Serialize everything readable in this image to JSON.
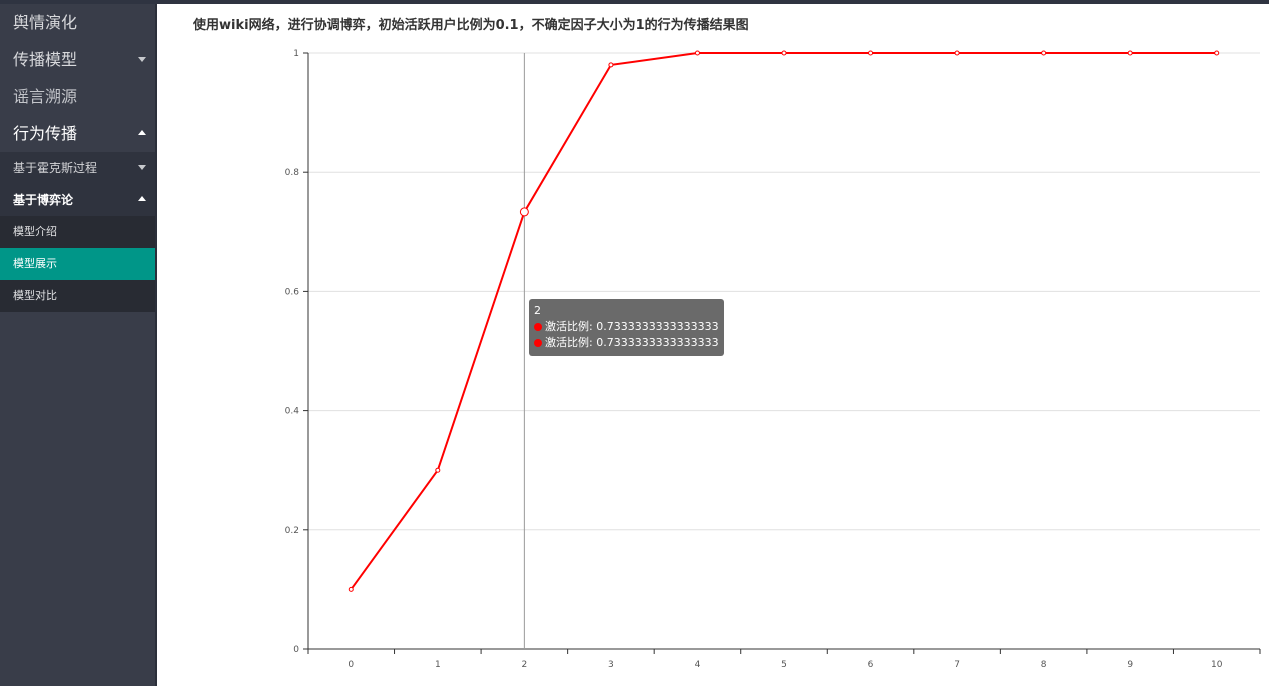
{
  "sidebar": {
    "items": [
      {
        "label": "舆情演化"
      },
      {
        "label": "传播模型"
      },
      {
        "label": "谣言溯源"
      },
      {
        "label": "行为传播"
      }
    ],
    "sub_items": [
      {
        "label": "基于霍克斯过程"
      },
      {
        "label": "基于博弈论"
      }
    ],
    "leaves": [
      {
        "label": "模型介绍"
      },
      {
        "label": "模型展示"
      },
      {
        "label": "模型对比"
      }
    ]
  },
  "main": {
    "title": "使用wiki网络，进行协调博弈，初始活跃用户比例为0.1，不确定因子大小为1的行为传播结果图"
  },
  "tooltip": {
    "x_label": "2",
    "rows": [
      {
        "text": "激活比例: 0.7333333333333333"
      },
      {
        "text": "激活比例: 0.7333333333333333"
      }
    ]
  },
  "chart_data": {
    "type": "line",
    "x": [
      0,
      1,
      2,
      3,
      4,
      5,
      6,
      7,
      8,
      9,
      10
    ],
    "series": [
      {
        "name": "激活比例",
        "color": "#ff0000",
        "values": [
          0.1,
          0.3,
          0.7333333333333333,
          0.98,
          1,
          1,
          1,
          1,
          1,
          1,
          1
        ]
      }
    ],
    "ylim": [
      0,
      1
    ],
    "yticks": [
      "0",
      "0.2",
      "0.4",
      "0.6",
      "0.8",
      "1"
    ],
    "xticks": [
      "0",
      "1",
      "2",
      "3",
      "4",
      "5",
      "6",
      "7",
      "8",
      "9",
      "10"
    ],
    "grid": true,
    "highlight_index": 2
  }
}
